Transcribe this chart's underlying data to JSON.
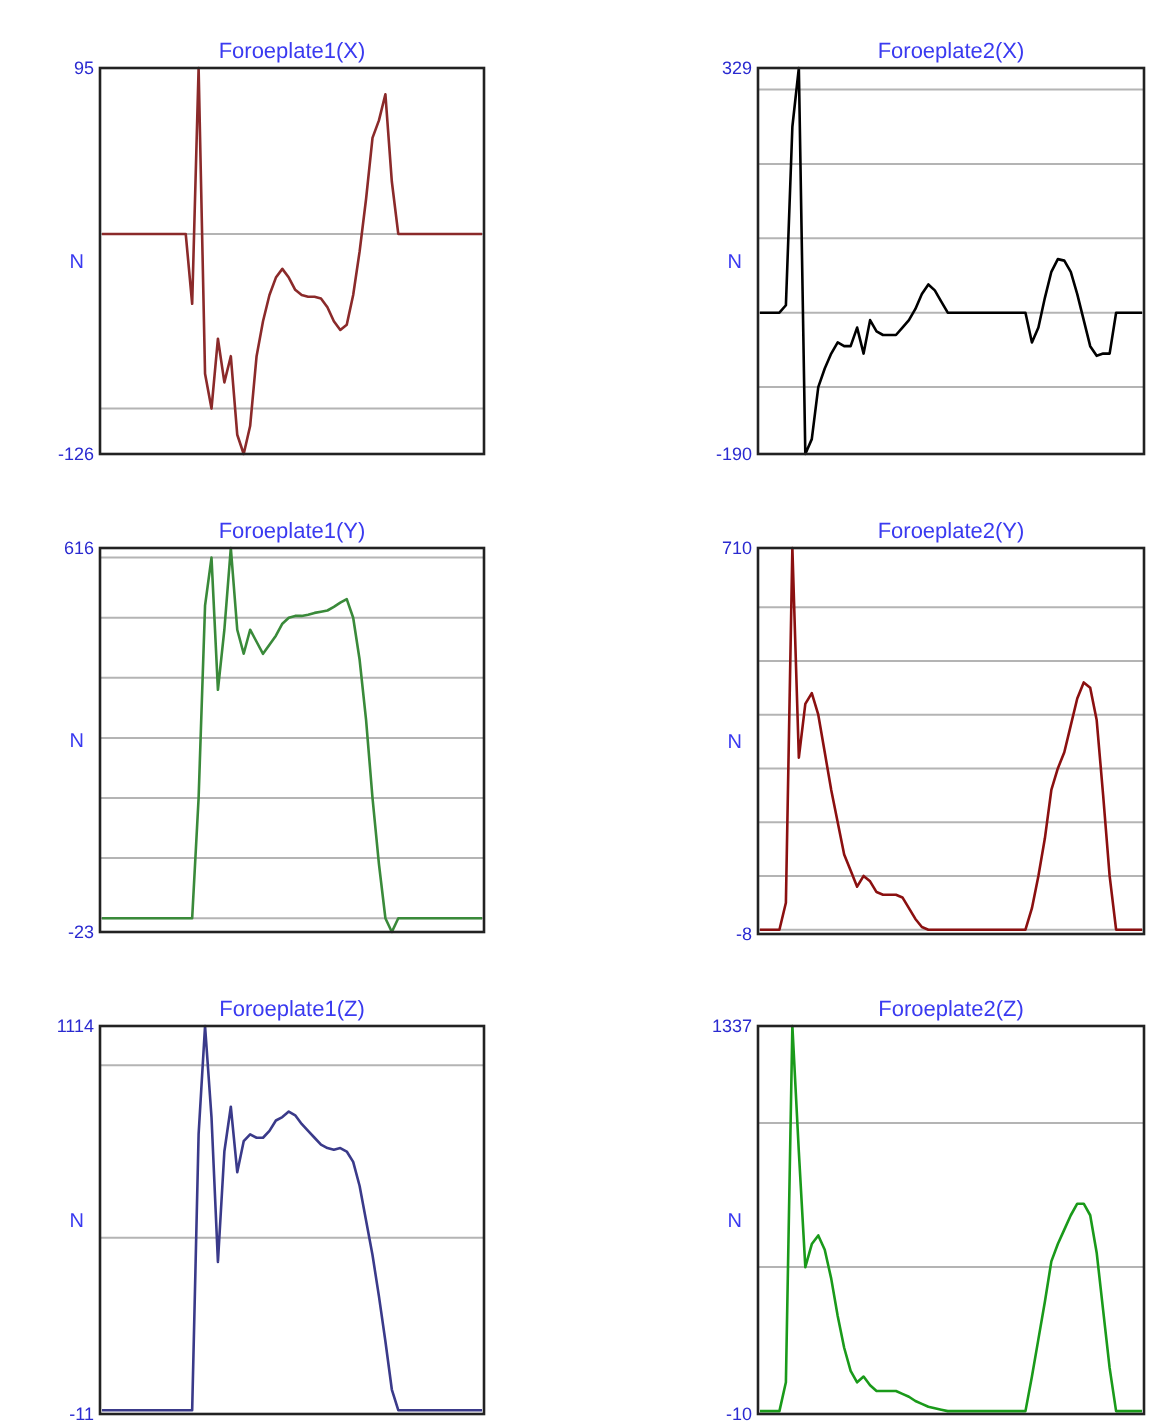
{
  "chart_data": [
    {
      "type": "line",
      "title": "Foroeplate1(X)",
      "ylabel": "N",
      "grid": "y",
      "tick_labels": "y",
      "ylim": [
        -126,
        95
      ],
      "yticks": [
        -126,
        {
          "value": -100,
          "label": null
        },
        {
          "value": 0,
          "label": null
        },
        95
      ],
      "categories": [
        null,
        null,
        null,
        null,
        null,
        null,
        null,
        null,
        null,
        null,
        null,
        null,
        null,
        null,
        null,
        null,
        null,
        null,
        null,
        null,
        null,
        null,
        null,
        null,
        null,
        null,
        null,
        null,
        null,
        null,
        null,
        null,
        null,
        null,
        null,
        null,
        null,
        null,
        null,
        null,
        null,
        null,
        null,
        null,
        null,
        null,
        null,
        null,
        null,
        null,
        null,
        null,
        null,
        null,
        null,
        null,
        null,
        null,
        null,
        null
      ],
      "series": [
        {
          "color": "#8b2a2a",
          "values": [
            0,
            0,
            0,
            0,
            0,
            0,
            0,
            0,
            0,
            0,
            0,
            0,
            0,
            0,
            -40,
            95,
            -80,
            -100,
            -60,
            -85,
            -70,
            -115,
            -126,
            -110,
            -70,
            -50,
            -35,
            -25,
            -20,
            -25,
            -32,
            -35,
            -36,
            -36,
            -37,
            -42,
            -50,
            -55,
            -52,
            -35,
            -10,
            20,
            55,
            65,
            80,
            30,
            0,
            0,
            0,
            0,
            0,
            0,
            0,
            0,
            0,
            0,
            0,
            0,
            0,
            0
          ]
        }
      ]
    },
    {
      "type": "line",
      "title": "Foroeplate2(X)",
      "ylabel": "N",
      "grid": "y",
      "tick_labels": "y",
      "ylim": [
        -190,
        329
      ],
      "yticks": [
        -190,
        {
          "value": -100,
          "label": null
        },
        {
          "value": 0,
          "label": null
        },
        {
          "value": 100,
          "label": null
        },
        {
          "value": 200,
          "label": null
        },
        {
          "value": 300,
          "label": null
        },
        329
      ],
      "categories": [
        null,
        null,
        null,
        null,
        null,
        null,
        null,
        null,
        null,
        null,
        null,
        null,
        null,
        null,
        null,
        null,
        null,
        null,
        null,
        null,
        null,
        null,
        null,
        null,
        null,
        null,
        null,
        null,
        null,
        null,
        null,
        null,
        null,
        null,
        null,
        null,
        null,
        null,
        null,
        null,
        null,
        null,
        null,
        null,
        null,
        null,
        null,
        null,
        null,
        null,
        null,
        null,
        null,
        null,
        null,
        null,
        null,
        null,
        null,
        null
      ],
      "series": [
        {
          "color": "#000000",
          "values": [
            0,
            0,
            0,
            0,
            10,
            250,
            329,
            -190,
            -170,
            -100,
            -75,
            -55,
            -40,
            -45,
            -45,
            -20,
            -55,
            -10,
            -25,
            -30,
            -30,
            -30,
            -20,
            -10,
            5,
            25,
            38,
            30,
            15,
            0,
            0,
            0,
            0,
            0,
            0,
            0,
            0,
            0,
            0,
            0,
            0,
            0,
            -40,
            -20,
            20,
            55,
            72,
            70,
            55,
            25,
            -10,
            -45,
            -58,
            -55,
            -55,
            0,
            0,
            0,
            0,
            0
          ]
        }
      ]
    },
    {
      "type": "line",
      "title": "Foroeplate1(Y)",
      "ylabel": "N",
      "grid": "y",
      "tick_labels": "y",
      "ylim": [
        -23,
        616
      ],
      "yticks": [
        -23,
        {
          "value": 0,
          "label": null
        },
        {
          "value": 100,
          "label": null
        },
        {
          "value": 200,
          "label": null
        },
        {
          "value": 300,
          "label": null
        },
        {
          "value": 400,
          "label": null
        },
        {
          "value": 500,
          "label": null
        },
        {
          "value": 600,
          "label": null
        },
        616
      ],
      "categories": [
        null,
        null,
        null,
        null,
        null,
        null,
        null,
        null,
        null,
        null,
        null,
        null,
        null,
        null,
        null,
        null,
        null,
        null,
        null,
        null,
        null,
        null,
        null,
        null,
        null,
        null,
        null,
        null,
        null,
        null,
        null,
        null,
        null,
        null,
        null,
        null,
        null,
        null,
        null,
        null,
        null,
        null,
        null,
        null,
        null,
        null,
        null,
        null,
        null,
        null,
        null,
        null,
        null,
        null,
        null,
        null,
        null,
        null,
        null,
        null
      ],
      "series": [
        {
          "color": "#3a8a3a",
          "values": [
            0,
            0,
            0,
            0,
            0,
            0,
            0,
            0,
            0,
            0,
            0,
            0,
            0,
            0,
            0,
            200,
            520,
            600,
            380,
            480,
            616,
            480,
            440,
            480,
            460,
            440,
            455,
            470,
            490,
            500,
            503,
            503,
            505,
            508,
            510,
            512,
            518,
            525,
            531,
            500,
            430,
            330,
            200,
            90,
            0,
            -23,
            0,
            0,
            0,
            0,
            0,
            0,
            0,
            0,
            0,
            0,
            0,
            0,
            0,
            0
          ]
        }
      ]
    },
    {
      "type": "line",
      "title": "Foroeplate2(Y)",
      "ylabel": "N",
      "grid": "y",
      "tick_labels": "y",
      "ylim": [
        -8,
        710
      ],
      "yticks": [
        -8,
        {
          "value": 0,
          "label": null
        },
        {
          "value": 100,
          "label": null
        },
        {
          "value": 200,
          "label": null
        },
        {
          "value": 300,
          "label": null
        },
        {
          "value": 400,
          "label": null
        },
        {
          "value": 500,
          "label": null
        },
        {
          "value": 600,
          "label": null
        },
        710
      ],
      "categories": [
        null,
        null,
        null,
        null,
        null,
        null,
        null,
        null,
        null,
        null,
        null,
        null,
        null,
        null,
        null,
        null,
        null,
        null,
        null,
        null,
        null,
        null,
        null,
        null,
        null,
        null,
        null,
        null,
        null,
        null,
        null,
        null,
        null,
        null,
        null,
        null,
        null,
        null,
        null,
        null,
        null,
        null,
        null,
        null,
        null,
        null,
        null,
        null,
        null,
        null,
        null,
        null,
        null,
        null,
        null,
        null,
        null,
        null,
        null,
        null
      ],
      "series": [
        {
          "color": "#8b1010",
          "values": [
            0,
            0,
            0,
            0,
            50,
            710,
            320,
            420,
            440,
            400,
            330,
            260,
            200,
            140,
            110,
            80,
            100,
            90,
            70,
            65,
            65,
            65,
            60,
            40,
            20,
            5,
            0,
            0,
            0,
            0,
            0,
            0,
            0,
            0,
            0,
            0,
            0,
            0,
            0,
            0,
            0,
            0,
            40,
            100,
            170,
            260,
            300,
            330,
            380,
            430,
            460,
            450,
            390,
            250,
            100,
            0,
            0,
            0,
            0,
            0
          ]
        }
      ]
    },
    {
      "type": "line",
      "title": "Foroeplate1(Z)",
      "ylabel": "N",
      "grid": "y",
      "tick_labels": "y",
      "ylim": [
        -11,
        1114
      ],
      "yticks": [
        -11,
        {
          "value": 500,
          "label": null
        },
        {
          "value": 1000,
          "label": null
        },
        1114
      ],
      "categories": [
        null,
        null,
        null,
        null,
        null,
        null,
        null,
        null,
        null,
        null,
        null,
        null,
        null,
        null,
        null,
        null,
        null,
        null,
        null,
        null,
        null,
        null,
        null,
        null,
        null,
        null,
        null,
        null,
        null,
        null,
        null,
        null,
        null,
        null,
        null,
        null,
        null,
        null,
        null,
        null,
        null,
        null,
        null,
        null,
        null,
        null,
        null,
        null,
        null,
        null,
        null,
        null,
        null,
        null,
        null,
        null,
        null,
        null,
        null,
        null
      ],
      "series": [
        {
          "color": "#3a3a8a",
          "values": [
            0,
            0,
            0,
            0,
            0,
            0,
            0,
            0,
            0,
            0,
            0,
            0,
            0,
            0,
            0,
            800,
            1114,
            850,
            430,
            750,
            880,
            690,
            780,
            800,
            790,
            790,
            810,
            840,
            850,
            866,
            855,
            830,
            810,
            790,
            770,
            760,
            755,
            760,
            750,
            720,
            650,
            550,
            450,
            330,
            200,
            60,
            0,
            0,
            0,
            0,
            0,
            0,
            0,
            0,
            0,
            0,
            0,
            0,
            0,
            0
          ]
        }
      ]
    },
    {
      "type": "line",
      "title": "Foroeplate2(Z)",
      "ylabel": "N",
      "grid": "y",
      "tick_labels": "y",
      "ylim": [
        -10,
        1337
      ],
      "yticks": [
        -10,
        {
          "value": 500,
          "label": null
        },
        {
          "value": 1000,
          "label": null
        },
        1337
      ],
      "categories": [
        null,
        null,
        null,
        null,
        null,
        null,
        null,
        null,
        null,
        null,
        null,
        null,
        null,
        null,
        null,
        null,
        null,
        null,
        null,
        null,
        null,
        null,
        null,
        null,
        null,
        null,
        null,
        null,
        null,
        null,
        null,
        null,
        null,
        null,
        null,
        null,
        null,
        null,
        null,
        null,
        null,
        null,
        null,
        null,
        null,
        null,
        null,
        null,
        null,
        null,
        null,
        null,
        null,
        null,
        null,
        null,
        null,
        null,
        null,
        null
      ],
      "series": [
        {
          "color": "#1a9a1a",
          "values": [
            0,
            0,
            0,
            0,
            100,
            1337,
            900,
            500,
            580,
            610,
            560,
            460,
            330,
            220,
            140,
            100,
            120,
            90,
            70,
            70,
            70,
            70,
            60,
            50,
            35,
            25,
            15,
            10,
            5,
            0,
            0,
            0,
            0,
            0,
            0,
            0,
            0,
            0,
            0,
            0,
            0,
            0,
            120,
            250,
            380,
            520,
            580,
            630,
            680,
            720,
            720,
            680,
            550,
            350,
            150,
            0,
            0,
            0,
            0,
            0
          ]
        }
      ]
    }
  ]
}
